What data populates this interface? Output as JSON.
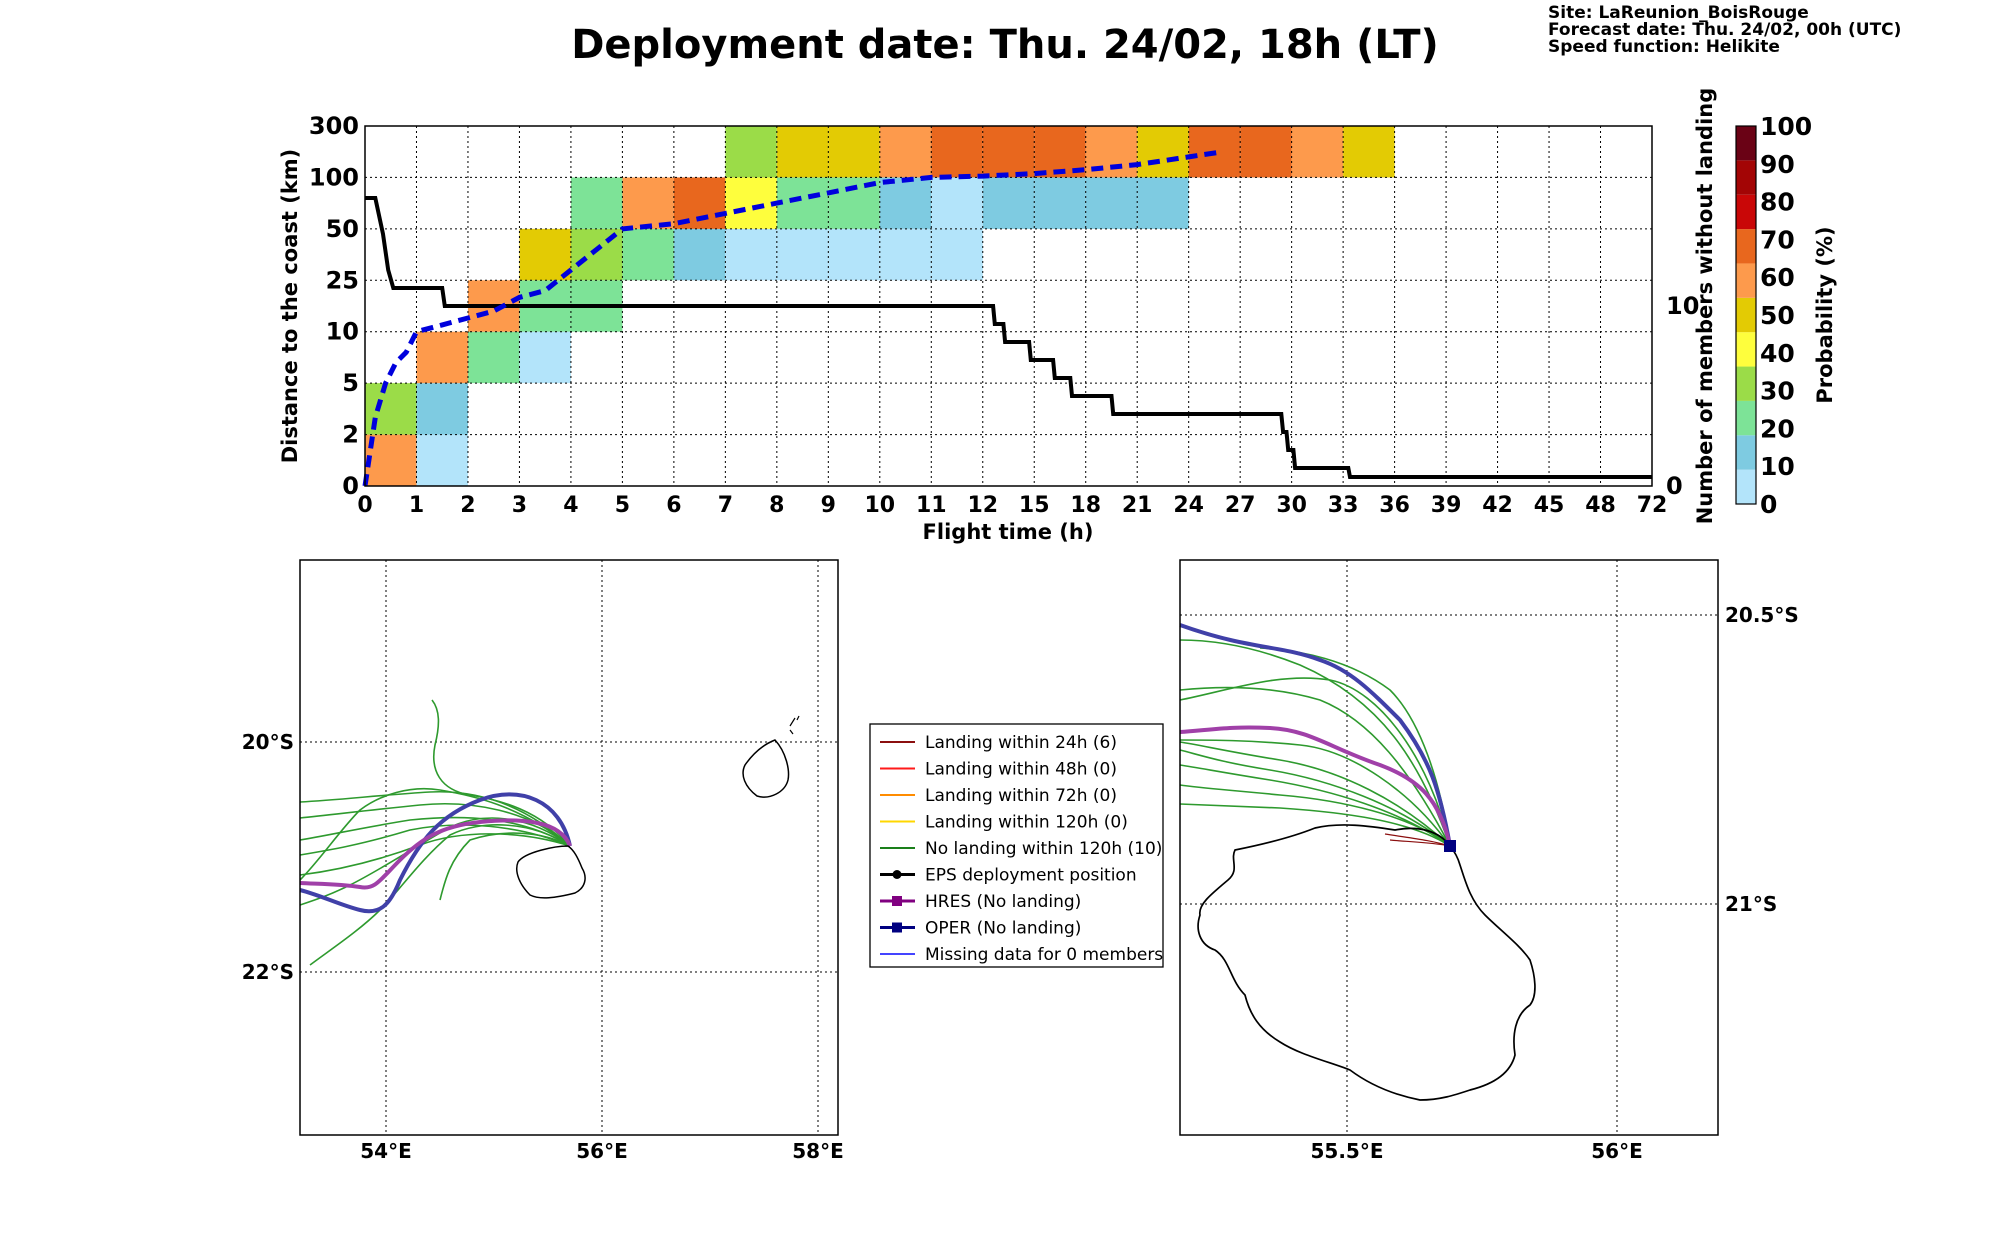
{
  "title": "Deployment date: Thu. 24/02, 18h (LT)",
  "info": {
    "site": "Site: LaReunion_BoisRouge",
    "forecast": "Forecast date: Thu. 24/02, 00h (UTC)",
    "speed": "Speed function: Helikite"
  },
  "chart_data": [
    {
      "type": "heatmap",
      "xlabel": "Flight time (h)",
      "ylabel": "Distance to the coast (km)",
      "y2label": "Number of members without landing",
      "colorbar_label": "Probability (%)",
      "x_ticks": [
        "0",
        "1",
        "2",
        "3",
        "4",
        "5",
        "6",
        "7",
        "8",
        "9",
        "10",
        "11",
        "12",
        "15",
        "18",
        "21",
        "24",
        "27",
        "30",
        "33",
        "36",
        "39",
        "42",
        "45",
        "48",
        "72"
      ],
      "y_ticks": [
        "0",
        "2",
        "5",
        "10",
        "25",
        "50",
        "100",
        "300"
      ],
      "y2_ticks": [
        "0",
        "10"
      ],
      "colorbar_ticks": [
        "0",
        "10",
        "20",
        "30",
        "40",
        "50",
        "60",
        "70",
        "80",
        "90",
        "100"
      ],
      "colorbar_colors": [
        "#b3e4fa",
        "#7ecbe1",
        "#7de397",
        "#9bdc48",
        "#fefe3d",
        "#e3cb04",
        "#fd9a4c",
        "#e8671e",
        "#c90707",
        "#a30505",
        "#6a0215"
      ],
      "cells_note": "cells: [x_bin_index, y_bin_index, probability_percent]",
      "cells": [
        [
          0,
          0,
          60
        ],
        [
          0,
          1,
          30
        ],
        [
          1,
          0,
          0
        ],
        [
          1,
          1,
          10
        ],
        [
          1,
          2,
          60
        ],
        [
          2,
          2,
          20
        ],
        [
          2,
          3,
          60
        ],
        [
          3,
          2,
          0
        ],
        [
          3,
          3,
          20
        ],
        [
          3,
          4,
          50
        ],
        [
          4,
          3,
          20
        ],
        [
          4,
          4,
          30
        ],
        [
          4,
          5,
          20
        ],
        [
          5,
          4,
          20
        ],
        [
          5,
          5,
          60
        ],
        [
          6,
          4,
          10
        ],
        [
          6,
          5,
          70
        ],
        [
          7,
          4,
          0
        ],
        [
          7,
          5,
          40
        ],
        [
          7,
          6,
          30
        ],
        [
          8,
          4,
          0
        ],
        [
          8,
          5,
          20
        ],
        [
          8,
          6,
          50
        ],
        [
          9,
          4,
          0
        ],
        [
          9,
          5,
          20
        ],
        [
          9,
          6,
          50
        ],
        [
          10,
          4,
          0
        ],
        [
          10,
          5,
          10
        ],
        [
          10,
          6,
          60
        ],
        [
          11,
          4,
          0
        ],
        [
          11,
          5,
          0
        ],
        [
          11,
          6,
          70
        ],
        [
          12,
          5,
          10
        ],
        [
          12,
          6,
          70
        ],
        [
          13,
          5,
          10
        ],
        [
          13,
          6,
          70
        ],
        [
          14,
          5,
          10
        ],
        [
          14,
          6,
          60
        ],
        [
          15,
          5,
          10
        ],
        [
          15,
          6,
          50
        ],
        [
          16,
          6,
          70
        ],
        [
          17,
          6,
          70
        ],
        [
          18,
          6,
          60
        ],
        [
          19,
          6,
          50
        ]
      ],
      "members_without_landing": {
        "x": [
          0,
          0.2,
          0.35,
          0.45,
          0.55,
          1.5,
          1.55,
          12,
          12.6,
          12.7,
          13.2,
          13.3,
          14.7,
          14.8,
          16.1,
          16.2,
          16.6,
          16.7,
          17.1,
          17.2,
          19.5,
          19.6,
          29.4,
          29.5,
          29.7,
          29.8,
          30.1,
          30.2,
          33.3,
          33.4,
          72
        ],
        "y": [
          16,
          16,
          14,
          12,
          11,
          11,
          10,
          10,
          10,
          9,
          9,
          8,
          8,
          7,
          7,
          6,
          6,
          6,
          6,
          5,
          5,
          4,
          4,
          3,
          3,
          2,
          2,
          1,
          1,
          0.5,
          0.5
        ]
      },
      "median_distance_km": {
        "x": [
          0,
          0.2,
          0.4,
          0.6,
          0.8,
          1,
          1.5,
          2,
          2.5,
          3,
          3.5,
          4,
          4.5,
          5,
          6,
          7,
          8,
          9,
          10,
          11,
          12,
          15,
          18,
          21,
          24,
          26
        ],
        "y": [
          0,
          3,
          5,
          7,
          8,
          10,
          12,
          14,
          16,
          20,
          22,
          30,
          40,
          50,
          55,
          65,
          75,
          85,
          95,
          100,
          105,
          115,
          130,
          150,
          180,
          200
        ]
      }
    }
  ],
  "legend": [
    {
      "label": "Landing within 24h (6)",
      "color": "#8b0f0f",
      "marker": "none"
    },
    {
      "label": "Landing within 48h (0)",
      "color": "#ff1a1a",
      "marker": "none"
    },
    {
      "label": "Landing within 72h (0)",
      "color": "#ff8c00",
      "marker": "none"
    },
    {
      "label": "Landing within 120h (0)",
      "color": "#ffd700",
      "marker": "none"
    },
    {
      "label": "No landing within 120h (10)",
      "color": "#1a7f1a",
      "marker": "none"
    },
    {
      "label": "EPS deployment position",
      "color": "#000000",
      "marker": "circle"
    },
    {
      "label": "HRES (No landing)",
      "color": "#800080",
      "marker": "square"
    },
    {
      "label": "OPER (No landing)",
      "color": "#000080",
      "marker": "square"
    },
    {
      "label": "Missing data for 0 members",
      "color": "#4444ff",
      "marker": "none"
    }
  ],
  "map_left": {
    "x_ticks": [
      "54°E",
      "56°E",
      "58°E"
    ],
    "y_ticks": [
      "20°S",
      "22°S"
    ]
  },
  "map_right": {
    "x_ticks": [
      "55.5°E",
      "56°E"
    ],
    "y_ticks": [
      "20.5°S",
      "21°S"
    ]
  }
}
